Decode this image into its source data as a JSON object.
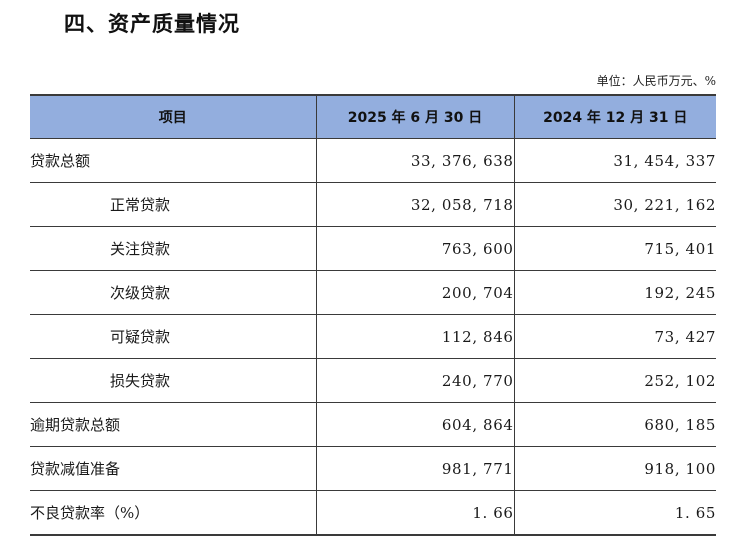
{
  "section_title": "四、资产质量情况",
  "unit_note": "单位：人民币万元、%",
  "table": {
    "headers": [
      "项目",
      "2025 年 6 月 30 日",
      "2024 年 12 月 31 日"
    ],
    "rows": [
      {
        "label": "贷款总额",
        "v2025": "33, 376, 638",
        "v2024": "31, 454, 337"
      },
      {
        "label": "正常贷款",
        "v2025": "32, 058, 718",
        "v2024": "30, 221, 162"
      },
      {
        "label": "关注贷款",
        "v2025": "763, 600",
        "v2024": "715, 401"
      },
      {
        "label": "次级贷款",
        "v2025": "200, 704",
        "v2024": "192, 245"
      },
      {
        "label": "可疑贷款",
        "v2025": "112, 846",
        "v2024": "73, 427"
      },
      {
        "label": "损失贷款",
        "v2025": "240, 770",
        "v2024": "252, 102"
      },
      {
        "label": "逾期贷款总额",
        "v2025": "604, 864",
        "v2024": "680, 185"
      },
      {
        "label": "贷款减值准备",
        "v2025": "981, 771",
        "v2024": "918, 100"
      },
      {
        "label": "不良贷款率（%）",
        "v2025": "1. 66",
        "v2024": "1. 65"
      }
    ]
  }
}
